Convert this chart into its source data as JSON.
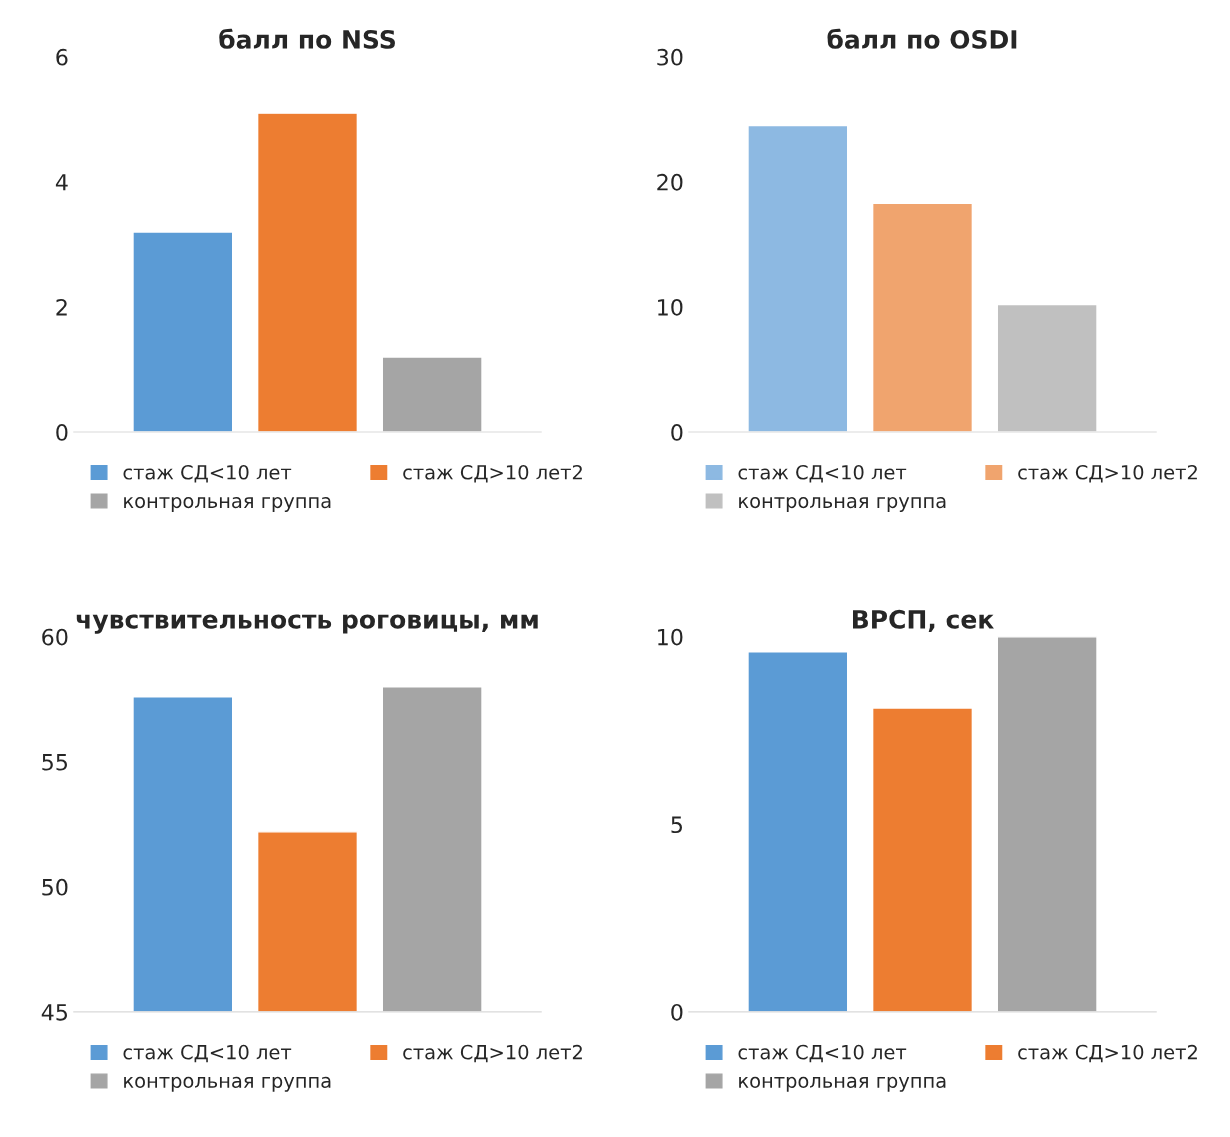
{
  "chart_data": [
    {
      "type": "bar",
      "title": "балл по NSS",
      "categories": [
        null
      ],
      "ylim": [
        0,
        6
      ],
      "yticks": [
        0,
        2,
        4,
        6
      ],
      "tick_labels": "y",
      "legend": "bottom",
      "grid": false,
      "series": [
        {
          "name": "стаж СД<10 лет",
          "color": "#5b9bd5",
          "values": [
            3.2
          ]
        },
        {
          "name": "стаж СД>10 лет2",
          "color": "#ed7d31",
          "values": [
            5.1
          ]
        },
        {
          "name": "контрольная группа",
          "color": "#a5a5a5",
          "values": [
            1.2
          ]
        }
      ]
    },
    {
      "type": "bar",
      "title": "балл по OSDI",
      "categories": [
        null
      ],
      "ylim": [
        0,
        30
      ],
      "yticks": [
        0,
        10,
        20,
        30
      ],
      "tick_labels": "y",
      "legend": "bottom",
      "grid": false,
      "series": [
        {
          "name": "стаж СД<10 лет",
          "color": "#8db9e2",
          "values": [
            24.5
          ]
        },
        {
          "name": "стаж СД>10 лет2",
          "color": "#f0a46e",
          "values": [
            18.3
          ]
        },
        {
          "name": "контрольная группа",
          "color": "#c0c0c0",
          "values": [
            10.2
          ]
        }
      ]
    },
    {
      "type": "bar",
      "title": "чувствительность роговицы, мм",
      "categories": [
        null
      ],
      "ylim": [
        45,
        60
      ],
      "yticks": [
        45,
        50,
        55,
        60
      ],
      "tick_labels": "y",
      "legend": "bottom",
      "grid": false,
      "series": [
        {
          "name": "стаж СД<10 лет",
          "color": "#5b9bd5",
          "values": [
            57.6
          ]
        },
        {
          "name": "стаж СД>10 лет2",
          "color": "#ed7d31",
          "values": [
            52.2
          ]
        },
        {
          "name": "контрольная группа",
          "color": "#a5a5a5",
          "values": [
            58.0
          ]
        }
      ]
    },
    {
      "type": "bar",
      "title": "ВРСП, сек",
      "categories": [
        null
      ],
      "ylim": [
        0,
        10
      ],
      "yticks": [
        0,
        5,
        10
      ],
      "tick_labels": "y",
      "legend": "bottom",
      "grid": false,
      "series": [
        {
          "name": "стаж СД<10 лет",
          "color": "#5b9bd5",
          "values": [
            9.6
          ]
        },
        {
          "name": "стаж СД>10 лет2",
          "color": "#ed7d31",
          "values": [
            8.1
          ]
        },
        {
          "name": "контрольная группа",
          "color": "#a5a5a5",
          "values": [
            10.0
          ]
        }
      ]
    }
  ]
}
